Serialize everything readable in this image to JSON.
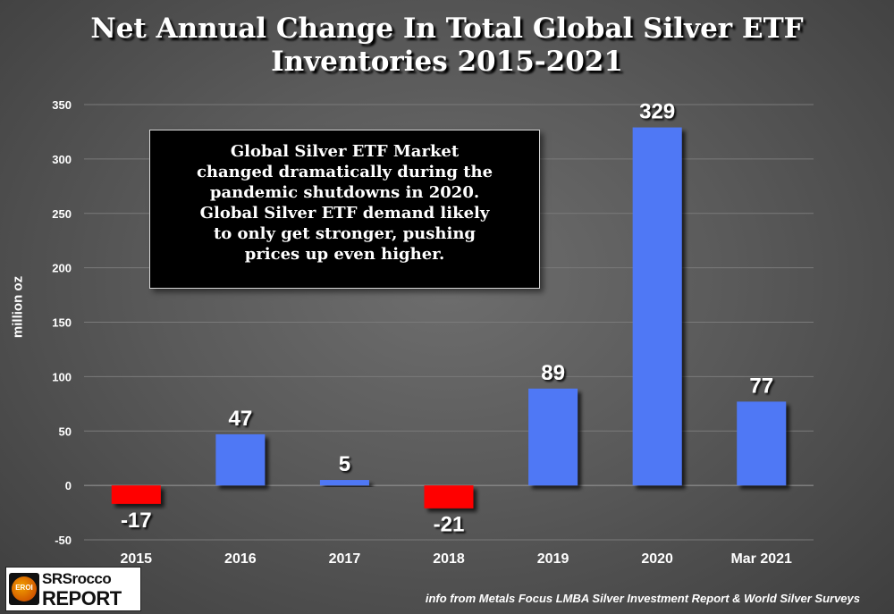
{
  "chart_data": {
    "type": "bar",
    "title": "Net Annual Change In Total Global Silver ETF Inventories 2015-2021",
    "title_lines": [
      "Net Annual Change In Total Global Silver ETF",
      "Inventories 2015-2021"
    ],
    "ylabel": "million oz",
    "xlabel": "",
    "categories": [
      "2015",
      "2016",
      "2017",
      "2018",
      "2019",
      "2020",
      "Mar 2021"
    ],
    "values": [
      -17,
      47,
      5,
      -21,
      89,
      329,
      77
    ],
    "data_labels": [
      "-17",
      "47",
      "5",
      "-21",
      "89",
      "329",
      "77"
    ],
    "ylim": [
      -50,
      350
    ],
    "yticks": [
      -50,
      0,
      50,
      100,
      150,
      200,
      250,
      300,
      350
    ],
    "grid": true,
    "colors": {
      "positive": "#5078f5",
      "negative": "#ff0000",
      "background": "#5a5a5a",
      "grid": "#7a7a7a"
    }
  },
  "annotation": {
    "lines": [
      "Global Silver ETF Market",
      "changed dramatically during the",
      "pandemic shutdowns in 2020.",
      "Global Silver ETF demand likely",
      "to only get stronger, pushing",
      "prices up even higher."
    ]
  },
  "logo": {
    "badge": "EROI",
    "top": "SRSrocco",
    "bottom": "REPORT"
  },
  "source": "info from Metals Focus LMBA Silver Investment Report & World Silver Surveys"
}
